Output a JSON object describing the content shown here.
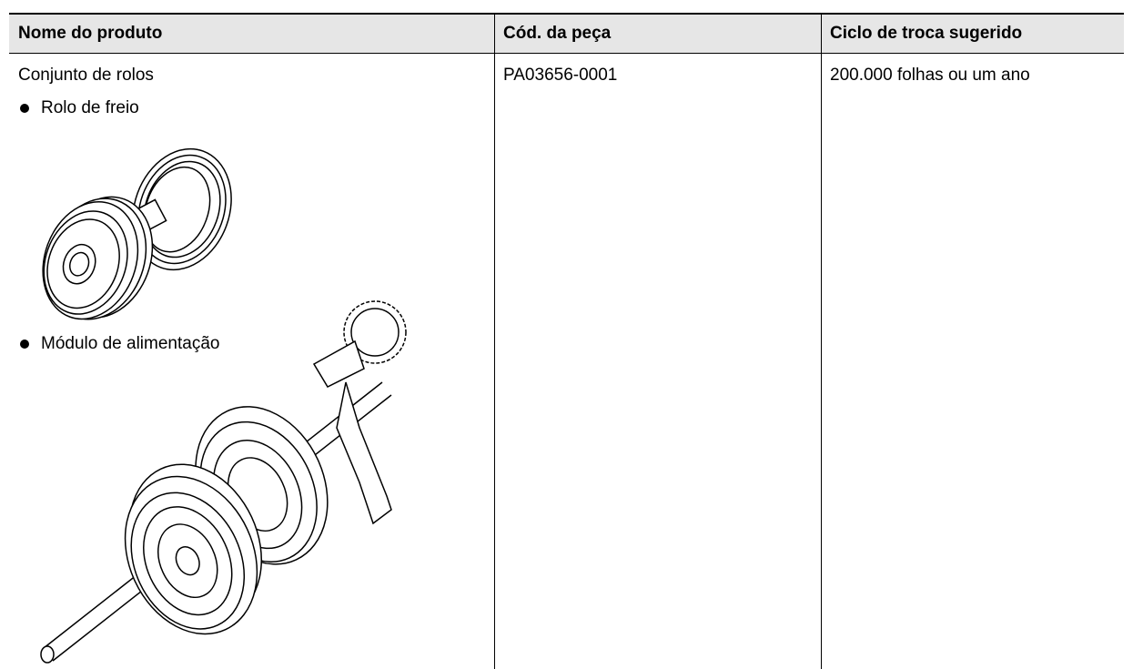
{
  "table": {
    "headers": [
      "Nome do produto",
      "Cód. da peça",
      "Ciclo de troca sugerido"
    ],
    "rows": [
      {
        "product": {
          "name": "Conjunto de rolos",
          "items": [
            "Rolo de freio",
            "Módulo de alimentação"
          ]
        },
        "part_code": "PA03656-0001",
        "cycle": "200.000 folhas ou um ano"
      }
    ]
  }
}
